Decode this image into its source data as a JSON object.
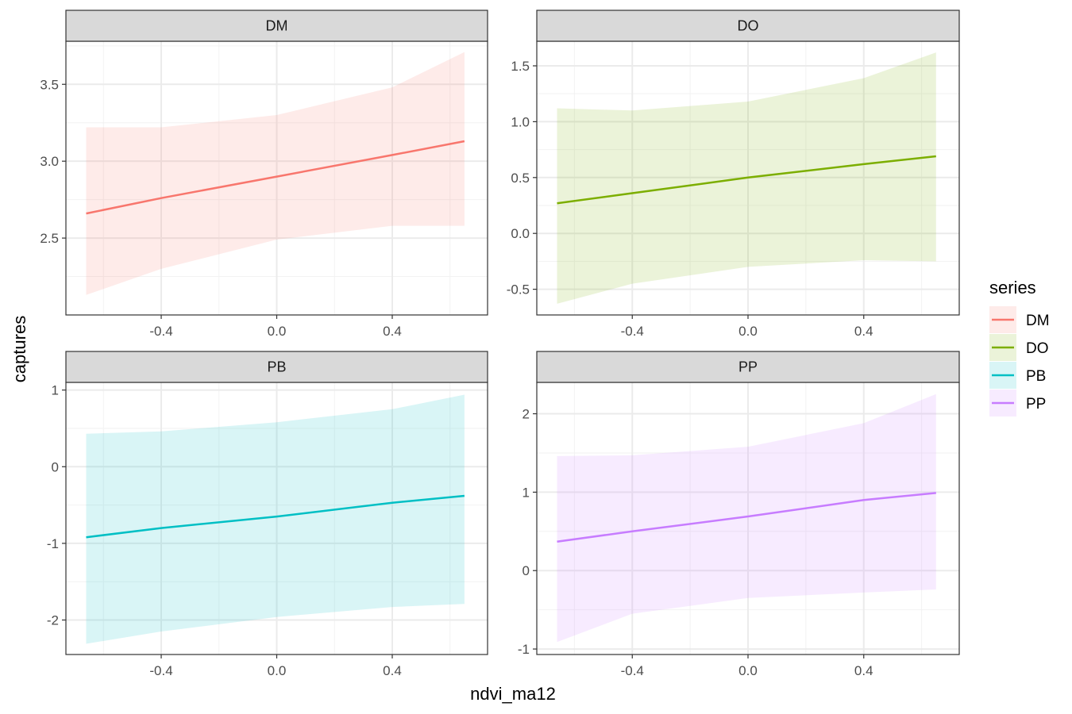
{
  "chart_data": {
    "type": "line",
    "facet_by": "series",
    "xlabel": "ndvi_ma12",
    "ylabel": "captures",
    "x_ticks": [
      -0.4,
      0.0,
      0.4
    ],
    "x_tick_labels": [
      "-0.4",
      "0.0",
      "0.4"
    ],
    "xlim": [
      -0.73,
      0.73
    ],
    "grid": true,
    "legend": {
      "title": "series",
      "position": "right",
      "entries": [
        "DM",
        "DO",
        "PB",
        "PP"
      ]
    },
    "panels": [
      {
        "title": "DM",
        "color": "#F8766D",
        "ylim": [
          2.0,
          3.78
        ],
        "y_ticks": [
          2.5,
          3.0,
          3.5
        ],
        "y_tick_labels": [
          "2.5",
          "3.0",
          "3.5"
        ],
        "x": [
          -0.66,
          -0.4,
          0.0,
          0.4,
          0.65
        ],
        "y": [
          2.66,
          2.76,
          2.9,
          3.04,
          3.13
        ],
        "lower": [
          2.13,
          2.3,
          2.49,
          2.58,
          2.58
        ],
        "upper": [
          3.22,
          3.22,
          3.3,
          3.48,
          3.71
        ]
      },
      {
        "title": "DO",
        "color": "#7CAE00",
        "ylim": [
          -0.73,
          1.72
        ],
        "y_ticks": [
          -0.5,
          0.0,
          0.5,
          1.0,
          1.5
        ],
        "y_tick_labels": [
          "-0.5",
          "0.0",
          "0.5",
          "1.0",
          "1.5"
        ],
        "x": [
          -0.66,
          -0.4,
          0.0,
          0.4,
          0.65
        ],
        "y": [
          0.27,
          0.36,
          0.5,
          0.62,
          0.69
        ],
        "lower": [
          -0.63,
          -0.45,
          -0.3,
          -0.24,
          -0.25
        ],
        "upper": [
          1.12,
          1.1,
          1.18,
          1.39,
          1.62
        ]
      },
      {
        "title": "PB",
        "color": "#00BFC4",
        "ylim": [
          -2.45,
          1.1
        ],
        "y_ticks": [
          -2,
          -1,
          0,
          1
        ],
        "y_tick_labels": [
          "-2",
          "-1",
          "0",
          "1"
        ],
        "x": [
          -0.66,
          -0.4,
          0.0,
          0.4,
          0.65
        ],
        "y": [
          -0.92,
          -0.8,
          -0.65,
          -0.47,
          -0.38
        ],
        "lower": [
          -2.31,
          -2.15,
          -1.96,
          -1.83,
          -1.79
        ],
        "upper": [
          0.43,
          0.46,
          0.58,
          0.75,
          0.94
        ]
      },
      {
        "title": "PP",
        "color": "#C77CFF",
        "ylim": [
          -1.07,
          2.4
        ],
        "y_ticks": [
          -1,
          0,
          1,
          2
        ],
        "y_tick_labels": [
          "-1",
          "0",
          "1",
          "2"
        ],
        "x": [
          -0.66,
          -0.4,
          0.0,
          0.4,
          0.65
        ],
        "y": [
          0.37,
          0.5,
          0.69,
          0.9,
          0.99
        ],
        "lower": [
          -0.91,
          -0.55,
          -0.35,
          -0.28,
          -0.24
        ],
        "upper": [
          1.46,
          1.47,
          1.58,
          1.88,
          2.25
        ]
      }
    ]
  }
}
